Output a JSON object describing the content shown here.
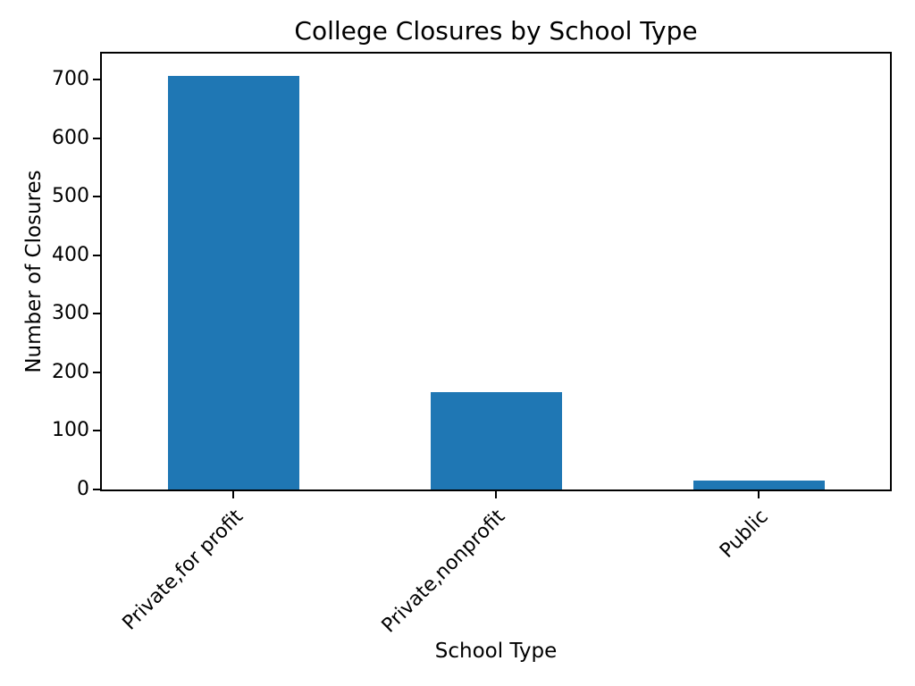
{
  "chart_data": {
    "type": "bar",
    "title": "College Closures by School Type",
    "xlabel": "School Type",
    "ylabel": "Number of Closures",
    "categories": [
      "Private,for profit",
      "Private,nonprofit",
      "Public"
    ],
    "values": [
      707,
      166,
      16
    ],
    "yticks": [
      0,
      100,
      200,
      300,
      400,
      500,
      600,
      700
    ],
    "ylim": [
      0,
      745
    ],
    "bar_color": "#1f77b4",
    "axis_color": "#000000",
    "text_color": "#000000",
    "bar_width_fraction": 0.5,
    "x_tick_rotation": 45,
    "grid": false,
    "legend": "none"
  }
}
